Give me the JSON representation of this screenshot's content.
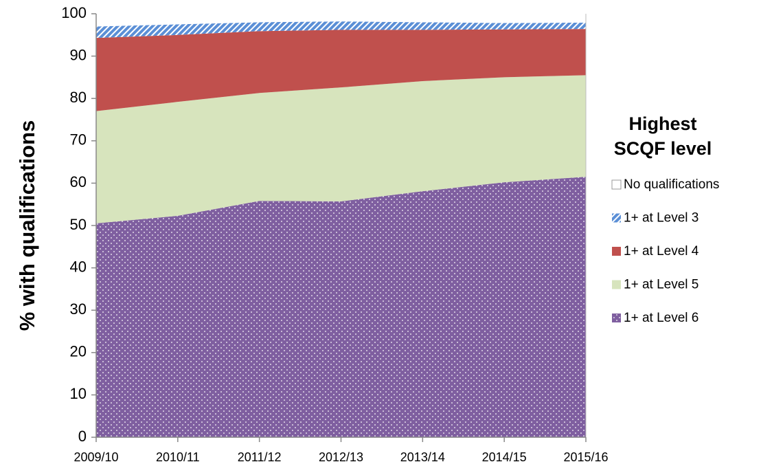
{
  "chart_data": {
    "type": "stacked_area",
    "y_label": "% with qualifications",
    "legend_title": "Highest SCQF level",
    "categories": [
      "2009/10",
      "2010/11",
      "2011/12",
      "2012/13",
      "2013/14",
      "2014/15",
      "2015/16"
    ],
    "series": [
      {
        "name": "1+ at Level 6",
        "color": "#7f5fa0",
        "values": [
          50.5,
          52.3,
          55.8,
          55.7,
          58.1,
          60.2,
          61.5
        ]
      },
      {
        "name": "1+ at Level 5",
        "color": "#d7e4bd",
        "values": [
          26.5,
          26.9,
          25.5,
          26.9,
          26.0,
          24.8,
          24.0
        ]
      },
      {
        "name": "1+ at Level 4",
        "color": "#c0504d",
        "values": [
          17.3,
          15.8,
          14.6,
          13.6,
          12.1,
          11.3,
          10.9
        ]
      },
      {
        "name": "1+ at Level 3",
        "color": "#5b8fd6",
        "values": [
          2.7,
          2.5,
          2.1,
          2.0,
          1.8,
          1.5,
          1.5
        ]
      },
      {
        "name": "No qualifications",
        "color": "#ffffff",
        "values": [
          3.0,
          2.5,
          2.0,
          1.8,
          2.0,
          2.2,
          2.1
        ]
      }
    ],
    "ylim": [
      0,
      100
    ],
    "yticks": [
      0,
      10,
      20,
      30,
      40,
      50,
      60,
      70,
      80,
      90,
      100
    ]
  }
}
